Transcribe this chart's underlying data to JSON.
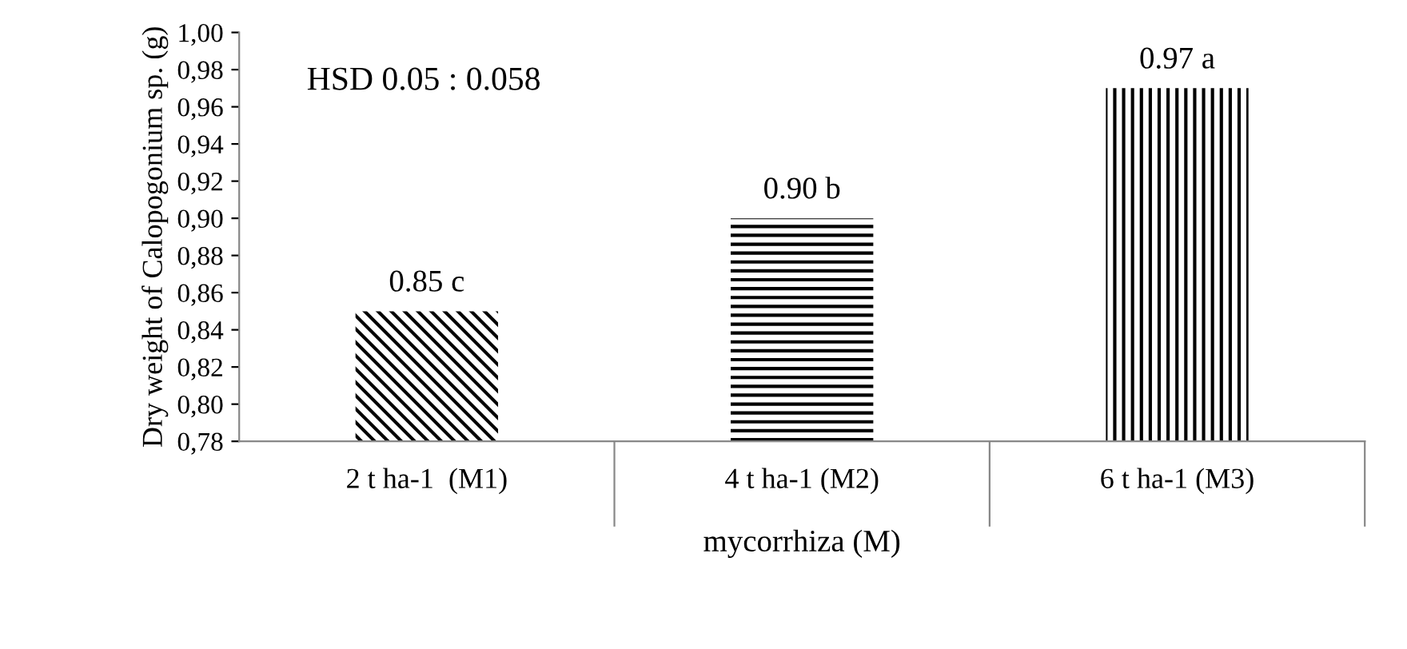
{
  "chart_data": {
    "type": "bar",
    "ylabel": "Dry weight of Calopogonium sp. (g)",
    "xlabel": "mycorrhiza (M)",
    "categories": [
      "2 t ha-1  (M1)",
      "4 t ha-1 (M2)",
      "6 t ha-1 (M3)"
    ],
    "values": [
      0.85,
      0.9,
      0.97
    ],
    "color": "#000000",
    "value_labels": [
      "0.85 c",
      "0.90 b",
      "0.97 a"
    ],
    "annotations": [
      "HSD 0.05 : 0.058"
    ],
    "ylim": [
      0.78,
      1.0
    ],
    "yticks": [
      {
        "value": 0.78,
        "label": "0,78"
      },
      {
        "value": 0.8,
        "label": "0,80"
      },
      {
        "value": 0.82,
        "label": "0,82"
      },
      {
        "value": 0.84,
        "label": "0,84"
      },
      {
        "value": 0.86,
        "label": "0,86"
      },
      {
        "value": 0.88,
        "label": "0,88"
      },
      {
        "value": 0.9,
        "label": "0,90"
      },
      {
        "value": 0.92,
        "label": "0,92"
      },
      {
        "value": 0.94,
        "label": "0,94"
      },
      {
        "value": 0.96,
        "label": "0,96"
      },
      {
        "value": 0.98,
        "label": "0,98"
      },
      {
        "value": 1.0,
        "label": "1,00"
      }
    ],
    "grid": false,
    "legend": false
  }
}
